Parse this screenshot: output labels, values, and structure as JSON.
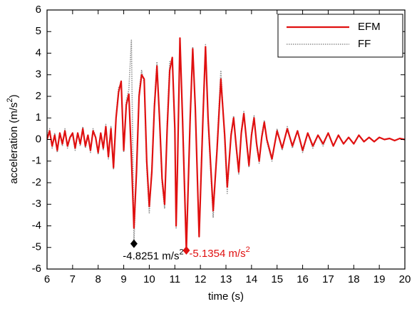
{
  "chart_data": {
    "type": "line",
    "xlabel": "time (s)",
    "ylabel": "acceleration (m/s",
    "ylabel_sup": "2",
    "ylabel_end": ")",
    "xlim": [
      6,
      20
    ],
    "xticks": [
      6,
      7,
      8,
      9,
      10,
      11,
      12,
      13,
      14,
      15,
      16,
      17,
      18,
      19,
      20
    ],
    "ylim": [
      -6,
      6
    ],
    "yticks": [
      -6,
      -5,
      -4,
      -3,
      -2,
      -1,
      0,
      1,
      2,
      3,
      4,
      5,
      6
    ],
    "legend": "upper right",
    "x": [
      6.0,
      6.1,
      6.2,
      6.3,
      6.4,
      6.5,
      6.6,
      6.7,
      6.8,
      6.9,
      7.0,
      7.1,
      7.2,
      7.3,
      7.4,
      7.5,
      7.6,
      7.7,
      7.8,
      7.9,
      8.0,
      8.1,
      8.2,
      8.3,
      8.4,
      8.5,
      8.6,
      8.7,
      8.8,
      8.9,
      9.0,
      9.1,
      9.2,
      9.3,
      9.4,
      9.5,
      9.6,
      9.7,
      9.8,
      9.9,
      10.0,
      10.1,
      10.2,
      10.3,
      10.4,
      10.5,
      10.6,
      10.7,
      10.8,
      10.9,
      11.0,
      11.05,
      11.1,
      11.2,
      11.3,
      11.45,
      11.6,
      11.7,
      11.8,
      11.95,
      12.1,
      12.2,
      12.3,
      12.5,
      12.65,
      12.8,
      12.95,
      13.05,
      13.2,
      13.3,
      13.4,
      13.5,
      13.6,
      13.7,
      13.8,
      13.9,
      14.0,
      14.1,
      14.2,
      14.3,
      14.4,
      14.5,
      14.6,
      14.8,
      15.0,
      15.2,
      15.4,
      15.6,
      15.8,
      16.0,
      16.2,
      16.4,
      16.6,
      16.8,
      17.0,
      17.2,
      17.4,
      17.6,
      17.8,
      18.0,
      18.2,
      18.4,
      18.6,
      18.8,
      19.0,
      19.2,
      19.4,
      19.6,
      19.8,
      20.0
    ],
    "series": [
      {
        "name": "EFM",
        "color": "#e01010",
        "style": "solid",
        "values": [
          0,
          0.4,
          -0.3,
          0.2,
          -0.5,
          0.3,
          -0.2,
          0.4,
          -0.3,
          0.1,
          0.3,
          -0.4,
          0.3,
          -0.2,
          0.5,
          -0.3,
          0.2,
          -0.5,
          0.4,
          0.1,
          -0.6,
          0.3,
          -0.4,
          0.6,
          -0.8,
          0.5,
          -1.3,
          1.0,
          2.2,
          2.7,
          -0.5,
          1.6,
          2.1,
          -0.8,
          -4.1,
          -1.5,
          2.0,
          3.0,
          2.8,
          -1.0,
          -3.1,
          -1.5,
          1.5,
          3.4,
          1.0,
          -1.8,
          -3.0,
          0.5,
          3.2,
          3.8,
          0.5,
          -4.0,
          -1.5,
          4.7,
          1.0,
          -5.1354,
          1.0,
          4.2,
          1.5,
          -4.5,
          1.0,
          4.3,
          1.0,
          -3.3,
          -0.5,
          2.8,
          0.2,
          -2.2,
          0.2,
          1.0,
          -0.3,
          -1.5,
          0.3,
          1.2,
          0.0,
          -1.2,
          0.2,
          1.0,
          -0.2,
          -1.0,
          0.1,
          0.8,
          0.0,
          -0.9,
          0.4,
          -0.4,
          0.5,
          -0.3,
          0.4,
          -0.5,
          0.3,
          -0.3,
          0.2,
          -0.2,
          0.3,
          -0.3,
          0.2,
          -0.2,
          0.1,
          -0.2,
          0.2,
          -0.1,
          0.1,
          -0.1,
          0.1,
          0.0,
          0.05,
          -0.05,
          0.05,
          0.0
        ]
      },
      {
        "name": "FF",
        "color": "#909090",
        "style": "dotted",
        "values": [
          0.1,
          0.5,
          -0.4,
          0.3,
          -0.6,
          0.3,
          -0.3,
          0.5,
          -0.4,
          0.1,
          0.2,
          -0.5,
          0.3,
          -0.3,
          0.6,
          -0.4,
          0.2,
          -0.6,
          0.5,
          0.1,
          -0.7,
          0.3,
          -0.5,
          0.7,
          -0.9,
          0.6,
          -1.4,
          1.1,
          2.4,
          2.6,
          -0.6,
          1.8,
          2.3,
          4.6,
          -4.8251,
          -1.2,
          2.2,
          3.2,
          2.6,
          -1.3,
          -3.4,
          -1.3,
          1.7,
          3.6,
          0.8,
          -2.0,
          -3.2,
          0.8,
          3.6,
          3.7,
          0.3,
          -4.1,
          -1.3,
          4.6,
          1.2,
          -4.8,
          0.8,
          4.3,
          1.3,
          -4.3,
          1.2,
          4.4,
          0.8,
          -3.6,
          -0.3,
          3.2,
          0.0,
          -2.5,
          0.3,
          1.1,
          -0.4,
          -1.6,
          0.4,
          1.3,
          -0.1,
          -1.3,
          0.3,
          1.1,
          -0.3,
          -1.1,
          0.2,
          0.9,
          -0.1,
          -1.0,
          0.5,
          -0.5,
          0.6,
          -0.4,
          0.4,
          -0.6,
          0.3,
          -0.4,
          0.2,
          -0.3,
          0.3,
          -0.3,
          0.2,
          -0.2,
          0.1,
          -0.2,
          0.2,
          -0.1,
          0.1,
          -0.1,
          0.1,
          0.0,
          0.05,
          -0.05,
          0.05,
          0.0
        ]
      }
    ],
    "annotations": [
      {
        "x": 9.4,
        "y": -4.8251,
        "text": "-4.8251 m/s",
        "sup": "2",
        "color": "#000000"
      },
      {
        "x": 11.45,
        "y": -5.1354,
        "text": "-5.1354 m/s",
        "sup": "2",
        "color": "#e01010"
      }
    ]
  }
}
